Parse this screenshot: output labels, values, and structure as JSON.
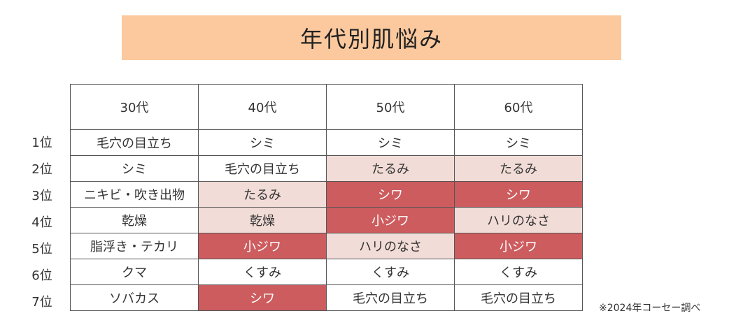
{
  "title": "年代別肌悩み",
  "columns": [
    "30代",
    "40代",
    "50代",
    "60代"
  ],
  "ranks": [
    "1位",
    "2位",
    "3位",
    "4位",
    "5位",
    "6位",
    "7位"
  ],
  "rows": [
    {
      "cells": [
        {
          "text": "毛穴の目立ち",
          "level": 0
        },
        {
          "text": "シミ",
          "level": 0
        },
        {
          "text": "シミ",
          "level": 0
        },
        {
          "text": "シミ",
          "level": 0
        }
      ]
    },
    {
      "cells": [
        {
          "text": "シミ",
          "level": 0
        },
        {
          "text": "毛穴の目立ち",
          "level": 0
        },
        {
          "text": "たるみ",
          "level": 1
        },
        {
          "text": "たるみ",
          "level": 1
        }
      ]
    },
    {
      "cells": [
        {
          "text": "ニキビ・吹き出物",
          "level": 0
        },
        {
          "text": "たるみ",
          "level": 1
        },
        {
          "text": "シワ",
          "level": 2
        },
        {
          "text": "シワ",
          "level": 2
        }
      ]
    },
    {
      "cells": [
        {
          "text": "乾燥",
          "level": 0
        },
        {
          "text": "乾燥",
          "level": 1
        },
        {
          "text": "小ジワ",
          "level": 2
        },
        {
          "text": "ハリのなさ",
          "level": 1
        }
      ]
    },
    {
      "cells": [
        {
          "text": "脂浮き・テカリ",
          "level": 0
        },
        {
          "text": "小ジワ",
          "level": 2
        },
        {
          "text": "ハリのなさ",
          "level": 1
        },
        {
          "text": "小ジワ",
          "level": 2
        }
      ]
    },
    {
      "cells": [
        {
          "text": "クマ",
          "level": 0
        },
        {
          "text": "くすみ",
          "level": 0
        },
        {
          "text": "くすみ",
          "level": 0
        },
        {
          "text": "くすみ",
          "level": 0
        }
      ]
    },
    {
      "cells": [
        {
          "text": "ソバカス",
          "level": 0
        },
        {
          "text": "シワ",
          "level": 2
        },
        {
          "text": "毛穴の目立ち",
          "level": 0
        },
        {
          "text": "毛穴の目立ち",
          "level": 0
        }
      ]
    }
  ],
  "note": "※2024年コーセー調べ",
  "colors": {
    "title_bg": "#fbc99d",
    "light_highlight": "#f2dcd7",
    "dark_highlight": "#cd5c5f"
  }
}
